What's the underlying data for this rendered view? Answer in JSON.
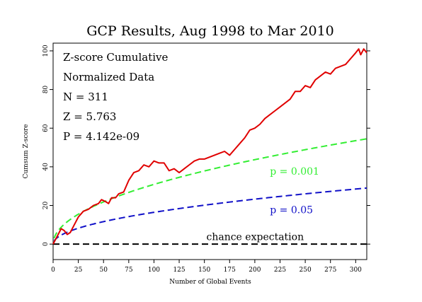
{
  "chart_data": {
    "type": "line",
    "title": "GCP Results, Aug 1998 to Mar 2010",
    "xlabel": "Number of Global Events",
    "ylabel": "Cumsum Z-score",
    "xlim": [
      0,
      311
    ],
    "ylim": [
      -8,
      104
    ],
    "x_ticks": [
      0,
      25,
      50,
      75,
      100,
      125,
      150,
      175,
      200,
      225,
      250,
      275,
      300
    ],
    "y_ticks": [
      0,
      20,
      40,
      60,
      80,
      100
    ],
    "grid": false,
    "info_lines": [
      "Z-score Cumulative",
      "Normalized Data",
      "N = 311",
      "Z = 5.763",
      "P = 4.142e-09"
    ],
    "series": [
      {
        "color": "#e00000",
        "style": "solid",
        "x": [
          0,
          3,
          5,
          8,
          11,
          14,
          17,
          20,
          25,
          30,
          35,
          40,
          45,
          48,
          52,
          55,
          58,
          62,
          65,
          70,
          75,
          80,
          85,
          90,
          95,
          100,
          105,
          110,
          115,
          120,
          125,
          130,
          135,
          140,
          145,
          150,
          155,
          160,
          165,
          170,
          175,
          180,
          185,
          190,
          195,
          200,
          205,
          210,
          215,
          220,
          225,
          230,
          235,
          240,
          245,
          250,
          255,
          260,
          265,
          270,
          275,
          280,
          285,
          290,
          295,
          300,
          303,
          305,
          308,
          311
        ],
        "y": [
          0,
          3,
          5,
          8,
          7,
          5,
          6,
          9,
          14,
          17,
          18,
          20,
          21,
          23,
          22,
          21,
          24,
          24,
          26,
          27,
          33,
          37,
          38,
          41,
          40,
          43,
          42,
          42,
          38,
          39,
          37,
          39,
          41,
          43,
          44,
          44,
          45,
          46,
          47,
          48,
          46,
          49,
          52,
          55,
          59,
          60,
          62,
          65,
          67,
          69,
          71,
          73,
          75,
          79,
          79,
          82,
          81,
          85,
          87,
          89,
          88,
          91,
          92,
          93,
          96,
          99,
          101,
          98,
          101,
          99
        ]
      },
      {
        "name": "p = 0.001",
        "color": "#33ee33",
        "style": "dashed",
        "formula": "3.09 * sqrt(N)"
      },
      {
        "name": "p = 0.05",
        "color": "#1010c8",
        "style": "dashed",
        "formula": "1.645 * sqrt(N)"
      },
      {
        "name": "chance expectation",
        "color": "#000000",
        "style": "dashed",
        "formula": "0"
      }
    ],
    "annotations": [
      {
        "text": "p = 0.001",
        "color": "#33ee33",
        "x": 215,
        "y": 36
      },
      {
        "text": "p = 0.05",
        "color": "#1010c8",
        "x": 215,
        "y": 16
      },
      {
        "text": "chance expectation",
        "color": "#000000",
        "x": 152,
        "y": 2
      }
    ]
  }
}
